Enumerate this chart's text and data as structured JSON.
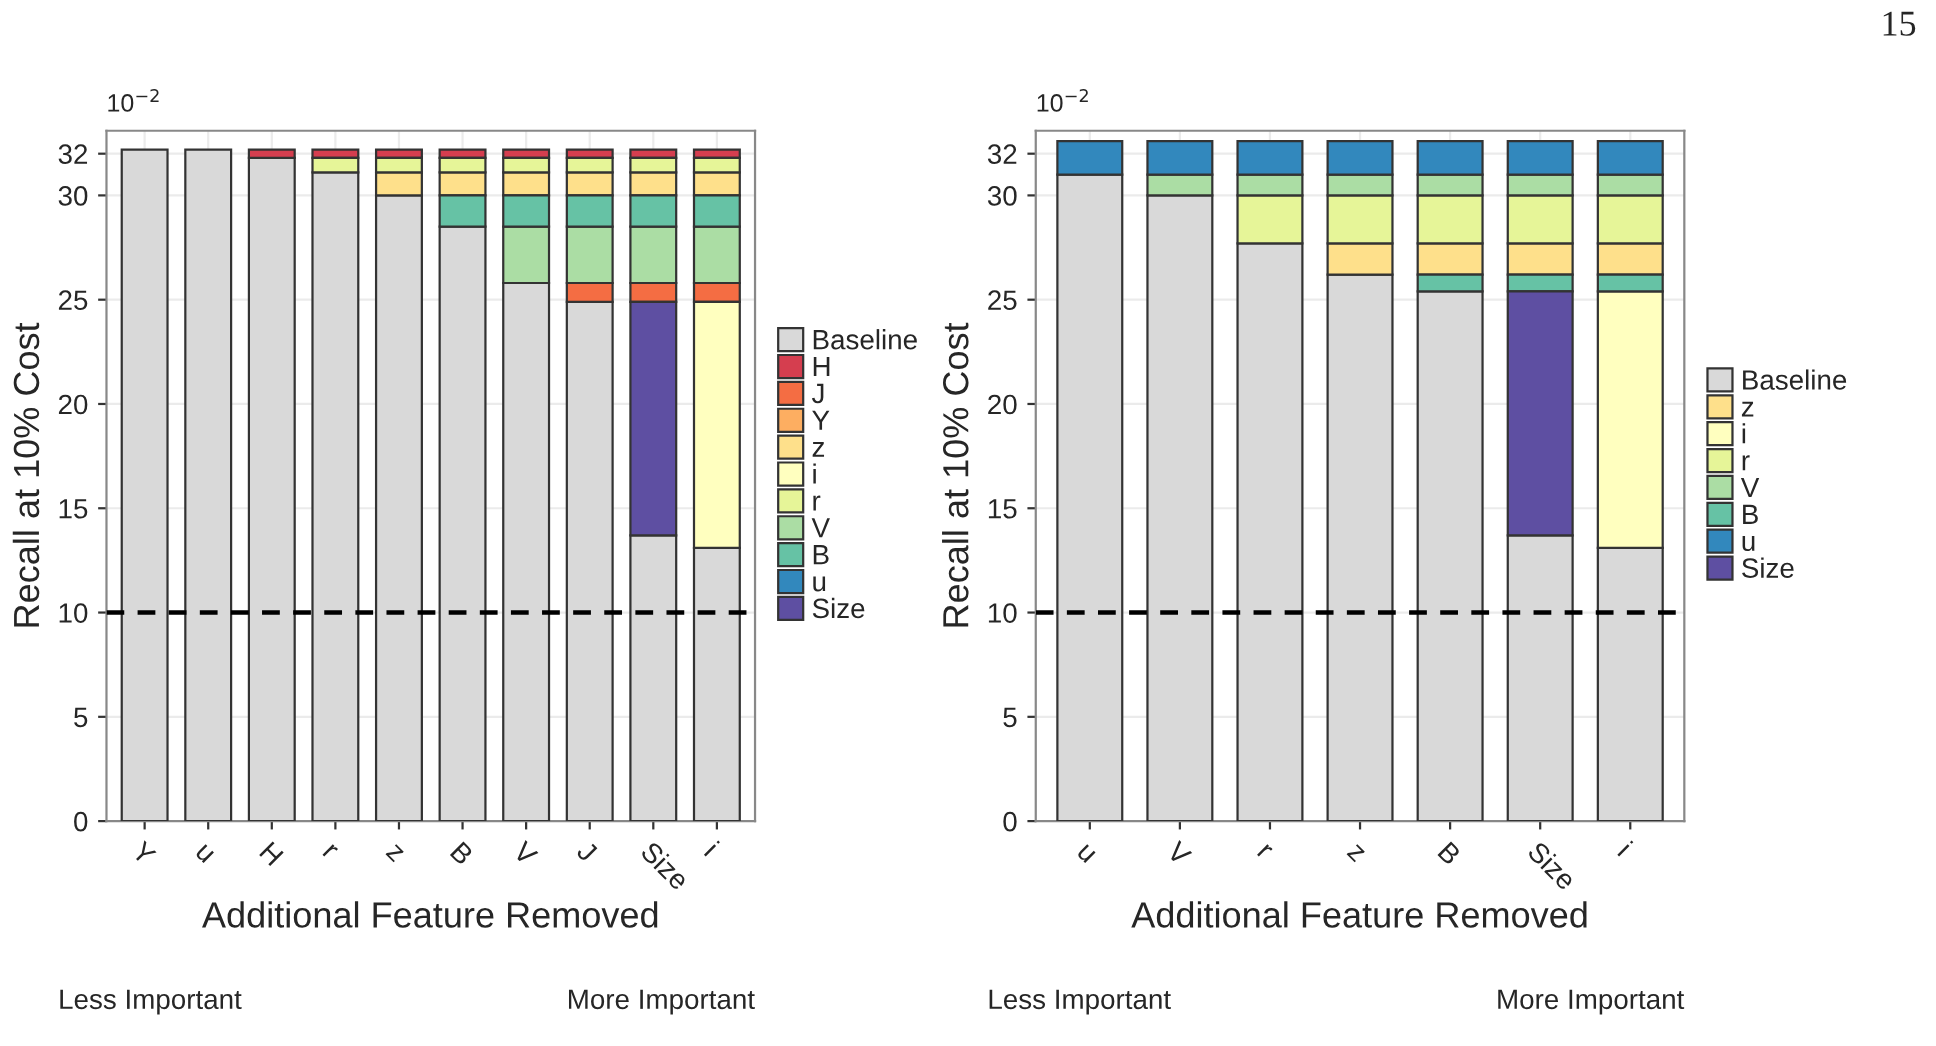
{
  "chart_data": [
    {
      "type": "bar",
      "ylabel": "Recall at 10% Cost",
      "xlabel": "Additional Feature Removed",
      "categories": [
        "Y",
        "u",
        "H",
        "r",
        "z",
        "B",
        "V",
        "J",
        "Size",
        "i"
      ],
      "ylim": [
        0,
        33.1
      ],
      "yticks": [
        0,
        5,
        10,
        15,
        20,
        25,
        30,
        32
      ],
      "grid": true,
      "legend": "right",
      "series": [
        {
          "name": "Baseline",
          "color": "#d9d9d9",
          "values": [
            32.2,
            32.2,
            31.8,
            31.1,
            30.0,
            28.5,
            25.8,
            24.9,
            13.7,
            13.1
          ],
          "base": [
            0,
            0,
            0,
            0,
            0,
            0,
            0,
            0,
            0,
            0
          ]
        },
        {
          "name": "H",
          "color": "#d53e4f",
          "values": [
            null,
            null,
            0.4,
            0.4,
            0.4,
            0.4,
            0.4,
            0.4,
            0.4,
            0.4
          ],
          "base": [
            null,
            null,
            31.8,
            31.8,
            31.8,
            31.8,
            31.8,
            31.8,
            31.8,
            31.8
          ]
        },
        {
          "name": "J",
          "color": "#f46d43",
          "values": [
            null,
            null,
            null,
            null,
            null,
            null,
            null,
            0.9,
            0.9,
            0.9
          ],
          "base": [
            null,
            null,
            null,
            null,
            null,
            null,
            null,
            24.9,
            24.9,
            24.9
          ]
        },
        {
          "name": "Y",
          "color": "#fdae61",
          "values": [
            null,
            null,
            null,
            null,
            null,
            null,
            null,
            null,
            null,
            null
          ],
          "base": [
            null,
            null,
            null,
            null,
            null,
            null,
            null,
            null,
            null,
            null
          ]
        },
        {
          "name": "z",
          "color": "#fee08b",
          "values": [
            null,
            null,
            null,
            null,
            1.1,
            1.1,
            1.1,
            1.1,
            1.1,
            1.1
          ],
          "base": [
            null,
            null,
            null,
            null,
            30.0,
            30.0,
            30.0,
            30.0,
            30.0,
            30.0
          ]
        },
        {
          "name": "i",
          "color": "#ffffbf",
          "values": [
            null,
            null,
            null,
            null,
            null,
            null,
            null,
            null,
            null,
            11.8
          ],
          "base": [
            null,
            null,
            null,
            null,
            null,
            null,
            null,
            null,
            null,
            13.1
          ]
        },
        {
          "name": "r",
          "color": "#e6f598",
          "values": [
            null,
            null,
            null,
            0.7,
            0.7,
            0.7,
            0.7,
            0.7,
            0.7,
            0.7
          ],
          "base": [
            null,
            null,
            null,
            31.1,
            31.1,
            31.1,
            31.1,
            31.1,
            31.1,
            31.1
          ]
        },
        {
          "name": "V",
          "color": "#abdda4",
          "values": [
            null,
            null,
            null,
            null,
            null,
            null,
            2.7,
            2.7,
            2.7,
            2.7
          ],
          "base": [
            null,
            null,
            null,
            null,
            null,
            null,
            25.8,
            25.8,
            25.8,
            25.8
          ]
        },
        {
          "name": "B",
          "color": "#66c2a5",
          "values": [
            null,
            null,
            null,
            null,
            null,
            1.5,
            1.5,
            1.5,
            1.5,
            1.5
          ],
          "base": [
            null,
            null,
            null,
            null,
            null,
            28.5,
            28.5,
            28.5,
            28.5,
            28.5
          ]
        },
        {
          "name": "u",
          "color": "#3288bd",
          "values": [
            null,
            null,
            null,
            null,
            null,
            null,
            null,
            null,
            null,
            null
          ],
          "base": [
            null,
            null,
            null,
            null,
            null,
            null,
            null,
            null,
            null,
            null
          ]
        },
        {
          "name": "Size",
          "color": "#5e4fa2",
          "values": [
            null,
            null,
            null,
            null,
            null,
            null,
            null,
            null,
            11.2,
            null
          ],
          "base": [
            null,
            null,
            null,
            null,
            null,
            null,
            null,
            null,
            13.7,
            null
          ]
        }
      ],
      "ref_lines": [
        {
          "axis": "y",
          "value": 10,
          "color": "#000000",
          "line_style": "dashed"
        }
      ],
      "annotations": [
        "10$^{−2}$",
        "Less Important",
        "More Important"
      ]
    },
    {
      "type": "bar",
      "ylabel": "Recall at 10% Cost",
      "xlabel": "Additional Feature Removed",
      "categories": [
        "u",
        "V",
        "r",
        "z",
        "B",
        "Size",
        "i"
      ],
      "ylim": [
        0,
        33.1
      ],
      "yticks": [
        0,
        5,
        10,
        15,
        20,
        25,
        30,
        32
      ],
      "grid": true,
      "legend": "right",
      "series": [
        {
          "name": "Baseline",
          "color": "#d9d9d9",
          "values": [
            31.0,
            30.0,
            27.7,
            26.2,
            25.4,
            13.7,
            13.1
          ],
          "base": [
            0,
            0,
            0,
            0,
            0,
            0,
            0
          ]
        },
        {
          "name": "z",
          "color": "#fee08b",
          "values": [
            null,
            null,
            null,
            1.5,
            1.5,
            1.5,
            1.5
          ],
          "base": [
            null,
            null,
            null,
            26.2,
            26.2,
            26.2,
            26.2
          ]
        },
        {
          "name": "i",
          "color": "#ffffbf",
          "values": [
            null,
            null,
            null,
            null,
            null,
            null,
            12.3
          ],
          "base": [
            null,
            null,
            null,
            null,
            null,
            null,
            13.1
          ]
        },
        {
          "name": "r",
          "color": "#e6f598",
          "values": [
            null,
            null,
            2.3,
            2.3,
            2.3,
            2.3,
            2.3
          ],
          "base": [
            null,
            null,
            27.7,
            27.7,
            27.7,
            27.7,
            27.7
          ]
        },
        {
          "name": "V",
          "color": "#abdda4",
          "values": [
            null,
            1.0,
            1.0,
            1.0,
            1.0,
            1.0,
            1.0
          ],
          "base": [
            null,
            30.0,
            30.0,
            30.0,
            30.0,
            30.0,
            30.0
          ]
        },
        {
          "name": "B",
          "color": "#66c2a5",
          "values": [
            null,
            null,
            null,
            null,
            0.8,
            0.8,
            0.8
          ],
          "base": [
            null,
            null,
            null,
            null,
            25.4,
            25.4,
            25.4
          ]
        },
        {
          "name": "u",
          "color": "#3288bd",
          "values": [
            1.6,
            1.6,
            1.6,
            1.6,
            1.6,
            1.6,
            1.6
          ],
          "base": [
            31.0,
            31.0,
            31.0,
            31.0,
            31.0,
            31.0,
            31.0
          ]
        },
        {
          "name": "Size",
          "color": "#5e4fa2",
          "values": [
            null,
            null,
            null,
            null,
            null,
            11.7,
            null
          ],
          "base": [
            null,
            null,
            null,
            null,
            null,
            13.7,
            null
          ]
        }
      ],
      "ref_lines": [
        {
          "axis": "y",
          "value": 10,
          "color": "#000000",
          "line_style": "dashed"
        }
      ],
      "annotations": [
        "10$^{−2}$",
        "Less Important",
        "More Important",
        "15"
      ]
    }
  ]
}
